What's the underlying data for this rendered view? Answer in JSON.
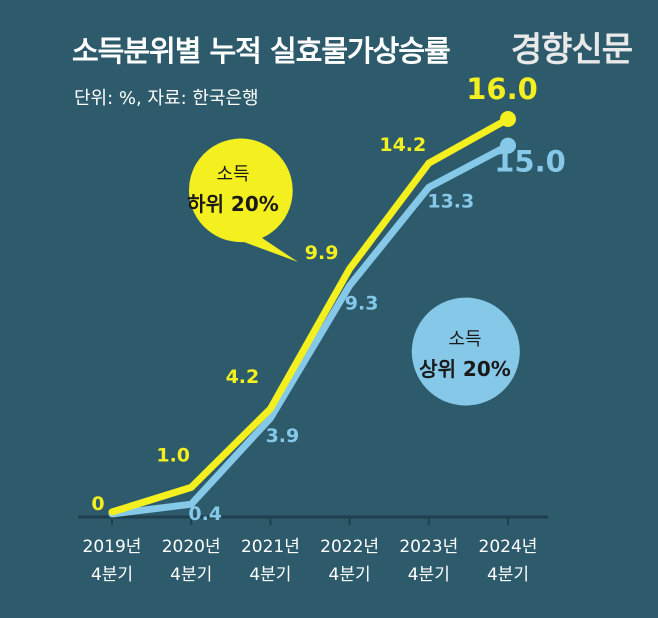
{
  "header": {
    "title": "소득분위별 누적 실효물가상승률",
    "subtitle": "단위: %, 자료: 한국은행",
    "logo": "경향신문"
  },
  "colors": {
    "background": "#2d5b6c",
    "lower_series": "#f4ef1e",
    "upper_series": "#86c8e8",
    "axis": "#1f3f4c",
    "callout_text": "#1a1a1a"
  },
  "callouts": {
    "lower": {
      "line1": "소득",
      "line2": "하위 20%"
    },
    "upper": {
      "line1": "소득",
      "line2": "상위 20%"
    }
  },
  "chart_data": {
    "type": "line",
    "categories": [
      [
        "2019년",
        "4분기"
      ],
      [
        "2020년",
        "4분기"
      ],
      [
        "2021년",
        "4분기"
      ],
      [
        "2022년",
        "4분기"
      ],
      [
        "2023년",
        "4분기"
      ],
      [
        "2024년",
        "4분기"
      ]
    ],
    "series": [
      {
        "name": "소득 하위 20%",
        "key": "lower",
        "values": [
          0,
          1.0,
          4.2,
          9.9,
          14.2,
          16.0
        ],
        "labels": [
          "0",
          "1.0",
          "4.2",
          "9.9",
          "14.2",
          "16.0"
        ]
      },
      {
        "name": "소득 상위 20%",
        "key": "upper",
        "values": [
          0,
          0.4,
          3.9,
          9.3,
          13.3,
          15.0
        ],
        "labels": [
          "",
          "0.4",
          "3.9",
          "9.3",
          "13.3",
          "15.0"
        ]
      }
    ],
    "ylim": [
      0,
      16
    ],
    "grid": false,
    "legend": "callouts"
  }
}
